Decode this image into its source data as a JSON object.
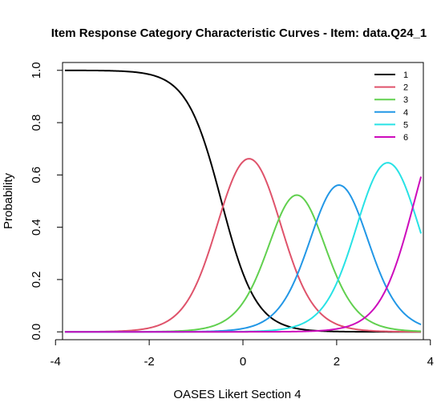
{
  "chart_data": {
    "type": "line",
    "title": "Item Response Category Characteristic Curves - Item: data.Q24_1",
    "xlabel": "OASES Likert Section 4",
    "ylabel": "Probability",
    "xlim": [
      -3.85,
      3.85
    ],
    "ylim": [
      -0.03,
      1.03
    ],
    "xticks": [
      -4,
      -2,
      0,
      2,
      4
    ],
    "xtick_labels": [
      "-4",
      "-2",
      "0",
      "2",
      "4"
    ],
    "yticks": [
      0.0,
      0.2,
      0.4,
      0.6,
      0.8,
      1.0
    ],
    "ytick_labels": [
      "0.0",
      "0.2",
      "0.4",
      "0.6",
      "0.8",
      "1.0"
    ],
    "grid": false,
    "legend_position": "top-right",
    "x_range": [
      -3.8,
      3.8
    ],
    "model": {
      "discrimination": 2.7,
      "thresholds": [
        -0.46,
        0.72,
        1.58,
        2.52,
        3.66
      ]
    },
    "series": [
      {
        "name": "1",
        "color": "#000000"
      },
      {
        "name": "2",
        "color": "#DF536B"
      },
      {
        "name": "3",
        "color": "#61D04F"
      },
      {
        "name": "4",
        "color": "#2297E6"
      },
      {
        "name": "5",
        "color": "#28E2E5"
      },
      {
        "name": "6",
        "color": "#CD0BBC"
      }
    ]
  }
}
